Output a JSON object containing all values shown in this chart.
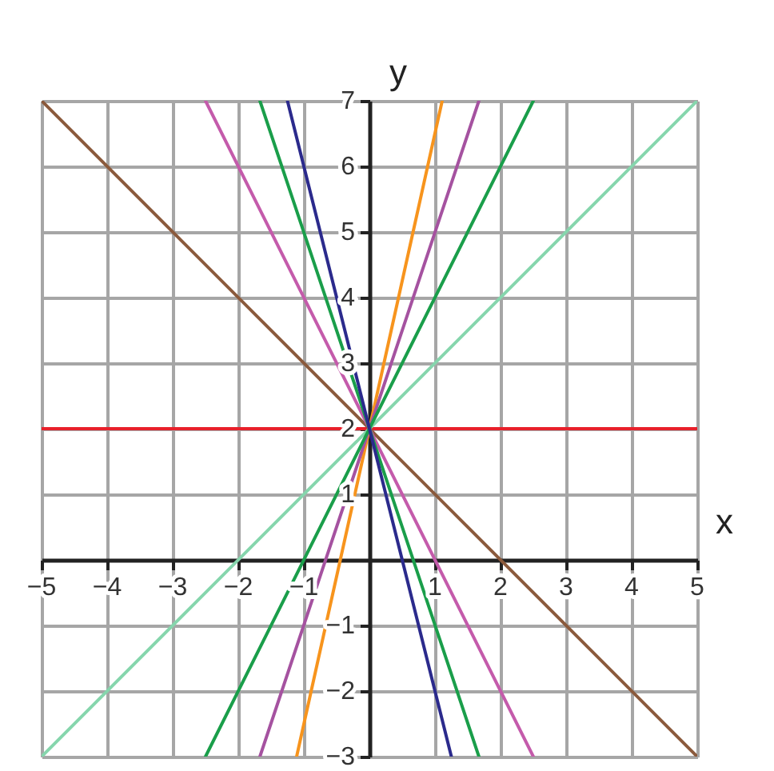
{
  "chart_data": {
    "type": "line",
    "xlabel": "x",
    "ylabel": "y",
    "xlim": [
      -5,
      5
    ],
    "ylim": [
      -3,
      7
    ],
    "xticks": [
      -5,
      -4,
      -3,
      -2,
      -1,
      1,
      2,
      3,
      4,
      5
    ],
    "yticks": [
      -3,
      -2,
      -1,
      1,
      2,
      3,
      4,
      5,
      6,
      7
    ],
    "grid": true,
    "legend": false,
    "marker": "none",
    "line_style": "solid",
    "series": [
      {
        "color": "#e8202a",
        "x": [
          -5,
          5
        ],
        "values": [
          2,
          2
        ]
      },
      {
        "color": "#86d6ad",
        "x": [
          -5,
          5
        ],
        "values": [
          -3,
          7
        ]
      },
      {
        "color": "#8b5a3c",
        "x": [
          -5,
          5
        ],
        "values": [
          7,
          -3
        ]
      },
      {
        "color": "#f7941d",
        "x": [
          -1.11,
          1.11
        ],
        "values": [
          -3,
          7
        ]
      },
      {
        "color": "#a552a0",
        "x": [
          -1.67,
          1.67
        ],
        "values": [
          -3,
          7
        ]
      },
      {
        "color": "#1a9e4a",
        "x": [
          -2.5,
          2.5
        ],
        "values": [
          -3,
          7
        ]
      },
      {
        "color": "#c45bab",
        "x": [
          -2.5,
          2.5
        ],
        "values": [
          7,
          -3
        ]
      },
      {
        "color": "#1a9e4a",
        "x": [
          -1.67,
          1.67
        ],
        "values": [
          7,
          -3
        ]
      },
      {
        "color": "#2b2a8c",
        "x": [
          -1.25,
          1.25
        ],
        "values": [
          7,
          -3
        ]
      }
    ]
  }
}
